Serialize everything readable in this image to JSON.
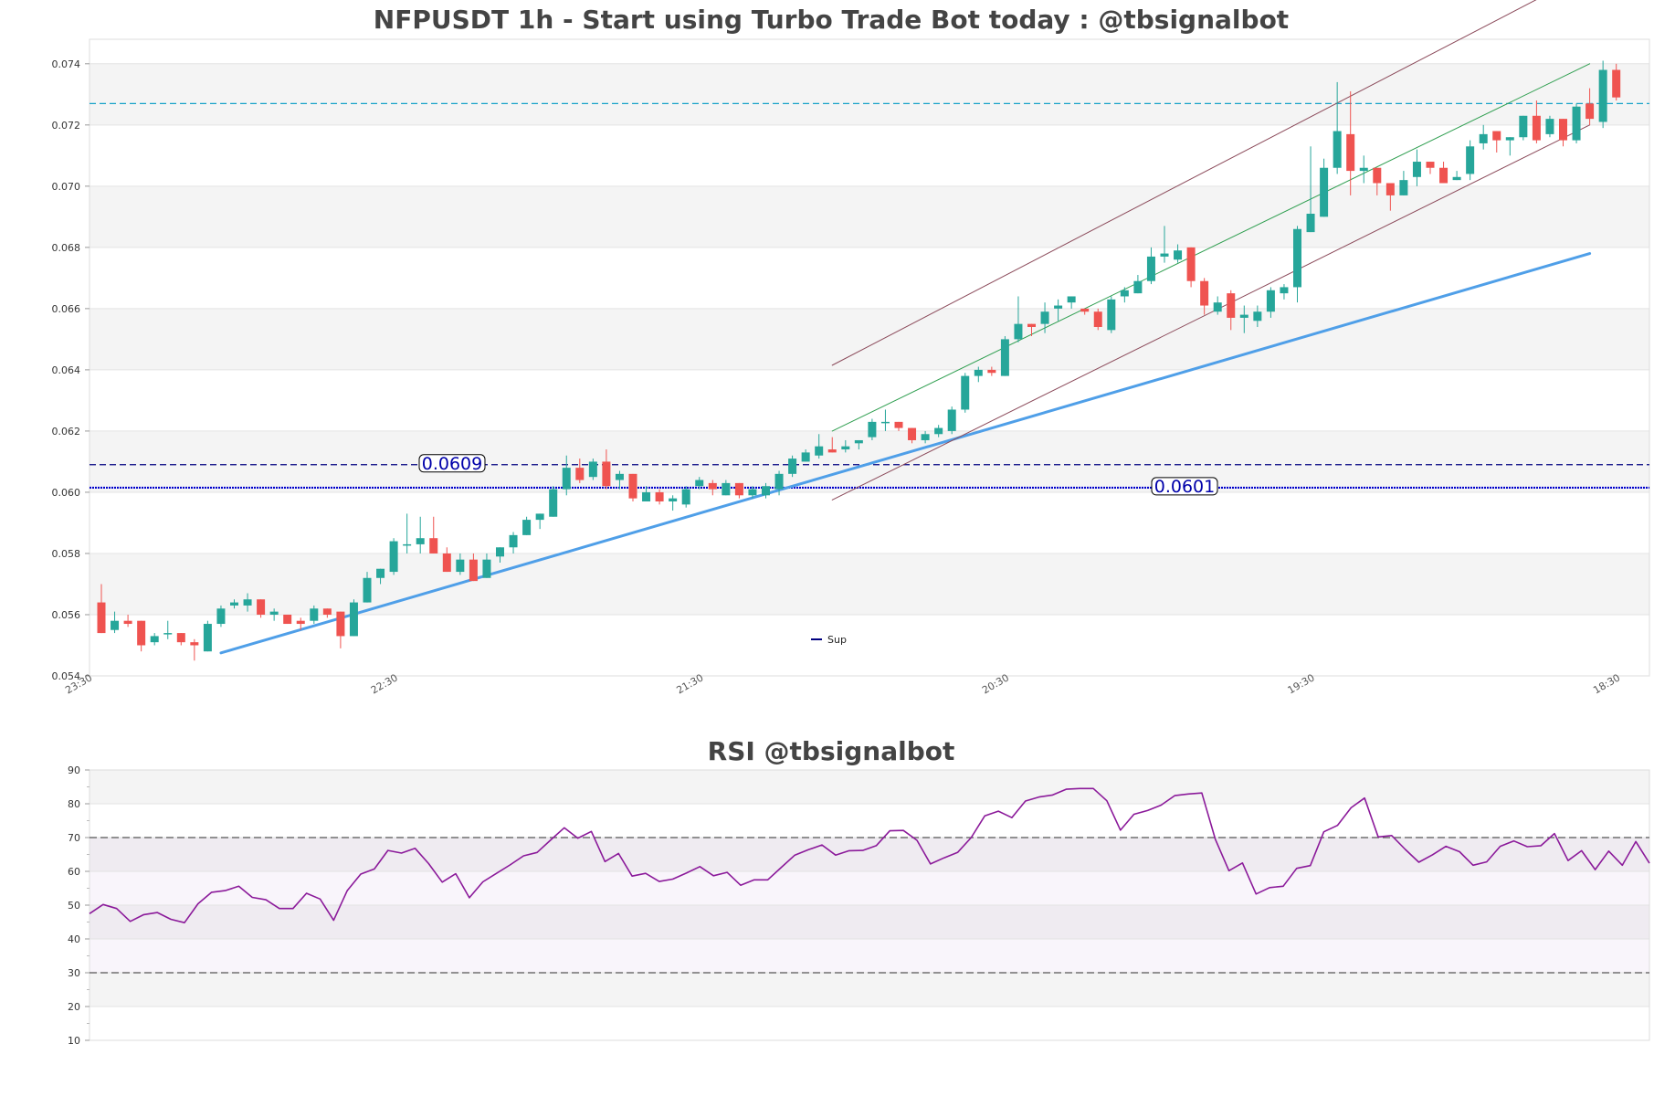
{
  "chart_data": [
    {
      "type": "candlestick",
      "title": "NFPUSDT 1h - Start using Turbo Trade Bot today : @tbsignalbot",
      "ylim": [
        0.054,
        0.0748
      ],
      "yticks": [
        "0.054",
        "0.056",
        "0.058",
        "0.060",
        "0.062",
        "0.064",
        "0.066",
        "0.068",
        "0.070",
        "0.072",
        "0.074"
      ],
      "xticks": [
        "23:30",
        "22:30",
        "21:30",
        "20:30",
        "19:30",
        "18:30"
      ],
      "grid": "horizontal bands",
      "candles": [
        [
          0.0564,
          0.057,
          0.0554,
          0.0554
        ],
        [
          0.0555,
          0.0561,
          0.0554,
          0.0558
        ],
        [
          0.0558,
          0.056,
          0.0556,
          0.0557
        ],
        [
          0.0558,
          0.0558,
          0.0548,
          0.055
        ],
        [
          0.0551,
          0.0554,
          0.055,
          0.0553
        ],
        [
          0.0554,
          0.0558,
          0.0552,
          0.0554
        ],
        [
          0.0554,
          0.0554,
          0.055,
          0.0551
        ],
        [
          0.0551,
          0.0552,
          0.0545,
          0.055
        ],
        [
          0.0548,
          0.0558,
          0.0548,
          0.0557
        ],
        [
          0.0557,
          0.0563,
          0.0556,
          0.0562
        ],
        [
          0.0563,
          0.0565,
          0.0562,
          0.0564
        ],
        [
          0.0563,
          0.0567,
          0.0561,
          0.0565
        ],
        [
          0.0565,
          0.0565,
          0.0559,
          0.056
        ],
        [
          0.056,
          0.0562,
          0.0558,
          0.0561
        ],
        [
          0.056,
          0.056,
          0.0557,
          0.0557
        ],
        [
          0.0558,
          0.0559,
          0.0555,
          0.0557
        ],
        [
          0.0558,
          0.0563,
          0.0557,
          0.0562
        ],
        [
          0.0562,
          0.0562,
          0.0559,
          0.056
        ],
        [
          0.0561,
          0.0561,
          0.0549,
          0.0553
        ],
        [
          0.0553,
          0.0565,
          0.0553,
          0.0564
        ],
        [
          0.0564,
          0.0574,
          0.0564,
          0.0572
        ],
        [
          0.0572,
          0.0575,
          0.057,
          0.0575
        ],
        [
          0.0574,
          0.0585,
          0.0573,
          0.0584
        ],
        [
          0.0583,
          0.0593,
          0.058,
          0.0583
        ],
        [
          0.0583,
          0.0592,
          0.058,
          0.0585
        ],
        [
          0.0585,
          0.0592,
          0.058,
          0.058
        ],
        [
          0.058,
          0.0582,
          0.0574,
          0.0574
        ],
        [
          0.0574,
          0.058,
          0.0573,
          0.0578
        ],
        [
          0.0578,
          0.058,
          0.0571,
          0.0571
        ],
        [
          0.0572,
          0.058,
          0.0572,
          0.0578
        ],
        [
          0.0579,
          0.0582,
          0.0577,
          0.0582
        ],
        [
          0.0582,
          0.0587,
          0.058,
          0.0586
        ],
        [
          0.0586,
          0.0592,
          0.0586,
          0.0591
        ],
        [
          0.0591,
          0.0593,
          0.0588,
          0.0593
        ],
        [
          0.0592,
          0.0602,
          0.0592,
          0.0601
        ],
        [
          0.0601,
          0.0612,
          0.0599,
          0.0608
        ],
        [
          0.0608,
          0.0611,
          0.0603,
          0.0604
        ],
        [
          0.0605,
          0.0611,
          0.0604,
          0.061
        ],
        [
          0.061,
          0.0614,
          0.0601,
          0.0602
        ],
        [
          0.0604,
          0.0607,
          0.0601,
          0.0606
        ],
        [
          0.0606,
          0.0606,
          0.0597,
          0.0598
        ],
        [
          0.0597,
          0.0602,
          0.0597,
          0.06
        ],
        [
          0.06,
          0.0601,
          0.0596,
          0.0597
        ],
        [
          0.0597,
          0.0599,
          0.0594,
          0.0598
        ],
        [
          0.0596,
          0.0602,
          0.0595,
          0.0601
        ],
        [
          0.0602,
          0.0605,
          0.0601,
          0.0604
        ],
        [
          0.0603,
          0.0604,
          0.0599,
          0.0601
        ],
        [
          0.0599,
          0.0604,
          0.0599,
          0.0603
        ],
        [
          0.0603,
          0.0603,
          0.0598,
          0.0599
        ],
        [
          0.0599,
          0.0602,
          0.0598,
          0.0601
        ],
        [
          0.0599,
          0.0603,
          0.0598,
          0.0602
        ],
        [
          0.0601,
          0.0607,
          0.0599,
          0.0606
        ],
        [
          0.0606,
          0.0612,
          0.0605,
          0.0611
        ],
        [
          0.061,
          0.0614,
          0.061,
          0.0613
        ],
        [
          0.0612,
          0.0619,
          0.0611,
          0.0615
        ],
        [
          0.0614,
          0.0618,
          0.0613,
          0.0613
        ],
        [
          0.0614,
          0.0617,
          0.0613,
          0.0615
        ],
        [
          0.0616,
          0.0617,
          0.0614,
          0.0617
        ],
        [
          0.0618,
          0.0624,
          0.0617,
          0.0623
        ],
        [
          0.0623,
          0.0627,
          0.062,
          0.0623
        ],
        [
          0.0623,
          0.0623,
          0.062,
          0.0621
        ],
        [
          0.0621,
          0.0621,
          0.0616,
          0.0617
        ],
        [
          0.0617,
          0.062,
          0.0616,
          0.0619
        ],
        [
          0.0619,
          0.0622,
          0.0618,
          0.0621
        ],
        [
          0.062,
          0.0628,
          0.0619,
          0.0627
        ],
        [
          0.0627,
          0.0639,
          0.0626,
          0.0638
        ],
        [
          0.0638,
          0.0641,
          0.0636,
          0.064
        ],
        [
          0.064,
          0.0641,
          0.0638,
          0.0639
        ],
        [
          0.0638,
          0.0651,
          0.0638,
          0.065
        ],
        [
          0.065,
          0.0664,
          0.0649,
          0.0655
        ],
        [
          0.0655,
          0.0655,
          0.0651,
          0.0654
        ],
        [
          0.0655,
          0.0662,
          0.0652,
          0.0659
        ],
        [
          0.066,
          0.0663,
          0.0656,
          0.0661
        ],
        [
          0.0662,
          0.0664,
          0.066,
          0.0664
        ],
        [
          0.066,
          0.066,
          0.0658,
          0.0659
        ],
        [
          0.0659,
          0.066,
          0.0653,
          0.0654
        ],
        [
          0.0653,
          0.0664,
          0.0652,
          0.0663
        ],
        [
          0.0664,
          0.0667,
          0.0662,
          0.0666
        ],
        [
          0.0665,
          0.0671,
          0.0665,
          0.0669
        ],
        [
          0.0669,
          0.068,
          0.0668,
          0.0677
        ],
        [
          0.0677,
          0.0687,
          0.0675,
          0.0678
        ],
        [
          0.0676,
          0.0681,
          0.0675,
          0.0679
        ],
        [
          0.068,
          0.068,
          0.0667,
          0.0669
        ],
        [
          0.0669,
          0.067,
          0.0658,
          0.0661
        ],
        [
          0.0659,
          0.0664,
          0.0658,
          0.0662
        ],
        [
          0.0665,
          0.0666,
          0.0653,
          0.0657
        ],
        [
          0.0657,
          0.0661,
          0.0652,
          0.0658
        ],
        [
          0.0656,
          0.0661,
          0.0654,
          0.0659
        ],
        [
          0.0659,
          0.0667,
          0.0657,
          0.0666
        ],
        [
          0.0665,
          0.0668,
          0.0663,
          0.0667
        ],
        [
          0.0667,
          0.0687,
          0.0662,
          0.0686
        ],
        [
          0.0685,
          0.0713,
          0.0685,
          0.0691
        ],
        [
          0.069,
          0.0709,
          0.069,
          0.0706
        ],
        [
          0.0706,
          0.0734,
          0.0704,
          0.0718
        ],
        [
          0.0717,
          0.0731,
          0.0697,
          0.0705
        ],
        [
          0.0705,
          0.071,
          0.0701,
          0.0706
        ],
        [
          0.0706,
          0.0706,
          0.0697,
          0.0701
        ],
        [
          0.0701,
          0.0701,
          0.0692,
          0.0697
        ],
        [
          0.0697,
          0.0705,
          0.0697,
          0.0702
        ],
        [
          0.0703,
          0.0712,
          0.07,
          0.0708
        ],
        [
          0.0708,
          0.0708,
          0.0704,
          0.0706
        ],
        [
          0.0706,
          0.0708,
          0.0701,
          0.0701
        ],
        [
          0.0702,
          0.0705,
          0.0702,
          0.0703
        ],
        [
          0.0704,
          0.0715,
          0.0702,
          0.0713
        ],
        [
          0.0714,
          0.072,
          0.0712,
          0.0717
        ],
        [
          0.0718,
          0.0718,
          0.0711,
          0.0715
        ],
        [
          0.0715,
          0.0716,
          0.071,
          0.0716
        ],
        [
          0.0716,
          0.0723,
          0.0715,
          0.0723
        ],
        [
          0.0723,
          0.0728,
          0.0714,
          0.0715
        ],
        [
          0.0717,
          0.0723,
          0.0716,
          0.0722
        ],
        [
          0.0722,
          0.0722,
          0.0713,
          0.0715
        ],
        [
          0.0715,
          0.0727,
          0.0714,
          0.0726
        ],
        [
          0.0727,
          0.0732,
          0.072,
          0.0722
        ],
        [
          0.0721,
          0.0741,
          0.0719,
          0.0738
        ],
        [
          0.0738,
          0.074,
          0.0728,
          0.0729
        ]
      ],
      "colors": {
        "up": "#26a69a",
        "down": "#ef5350"
      },
      "levels": [
        {
          "value": 0.0609,
          "label": "0.0609",
          "style": "dashed",
          "color": "#000080"
        },
        {
          "value": 0.06015,
          "label": "0.0601",
          "style": "dotted",
          "color": "#0000cc"
        },
        {
          "value": 0.0727,
          "label": "",
          "style": "dashed",
          "color": "#17a2c8"
        }
      ],
      "trendlines": [
        {
          "from": [
            9,
            0.05475
          ],
          "to": [
            112,
            0.0678
          ],
          "color": "#4f9fe8",
          "style": "solid-thick"
        },
        {
          "from": [
            55,
            0.062
          ],
          "to": [
            112,
            0.074
          ],
          "color": "#2e9e4f",
          "style": "solid"
        },
        {
          "from": [
            55,
            0.06415
          ],
          "to": [
            112,
            0.077
          ],
          "color": "#8b4a5a",
          "style": "solid"
        },
        {
          "from": [
            55,
            0.05975
          ],
          "to": [
            112,
            0.072
          ],
          "color": "#8b4a5a",
          "style": "solid"
        }
      ],
      "legend": {
        "label": "Sup",
        "position": "bottom-center"
      }
    },
    {
      "type": "line",
      "title": "RSI @tbsignalbot",
      "ylim": [
        10,
        90
      ],
      "yticks": [
        "10",
        "20",
        "30",
        "40",
        "50",
        "60",
        "70",
        "80",
        "90"
      ],
      "reference_lines": [
        70,
        30
      ],
      "series": [
        {
          "color": "#8b1a9a",
          "values": [
            47.5,
            50.2,
            49.0,
            45.2,
            47.2,
            47.8,
            45.8,
            44.8,
            50.4,
            53.8,
            54.3,
            55.6,
            52.3,
            51.6,
            49.0,
            49.0,
            53.5,
            51.8,
            45.5,
            54.3,
            59.2,
            60.7,
            66.2,
            65.4,
            66.8,
            62.3,
            56.8,
            59.3,
            52.2,
            56.9,
            59.4,
            61.9,
            64.6,
            65.6,
            69.3,
            72.9,
            69.8,
            71.8,
            62.9,
            65.3,
            58.6,
            59.4,
            57.0,
            57.7,
            59.5,
            61.4,
            58.7,
            59.7,
            55.9,
            57.5,
            57.5,
            61.2,
            64.8,
            66.4,
            67.8,
            64.8,
            66.1,
            66.2,
            67.6,
            72.0,
            72.1,
            69.2,
            62.2,
            64.0,
            65.6,
            70.0,
            76.4,
            77.8,
            75.9,
            80.8,
            82.0,
            82.6,
            84.3,
            84.5,
            84.5,
            80.9,
            72.2,
            76.9,
            78.0,
            79.6,
            82.4,
            82.9,
            83.2,
            69.5,
            60.2,
            62.5,
            53.3,
            55.2,
            55.6,
            60.9,
            61.7,
            71.7,
            73.6,
            78.8,
            81.7,
            70.2,
            70.6,
            66.5,
            62.7,
            64.9,
            67.4,
            65.8,
            61.8,
            62.8,
            67.4,
            69.0,
            67.3,
            67.6,
            71.2,
            63.2,
            66.1,
            60.5,
            66.0,
            61.8,
            68.8,
            62.4
          ]
        }
      ]
    }
  ]
}
